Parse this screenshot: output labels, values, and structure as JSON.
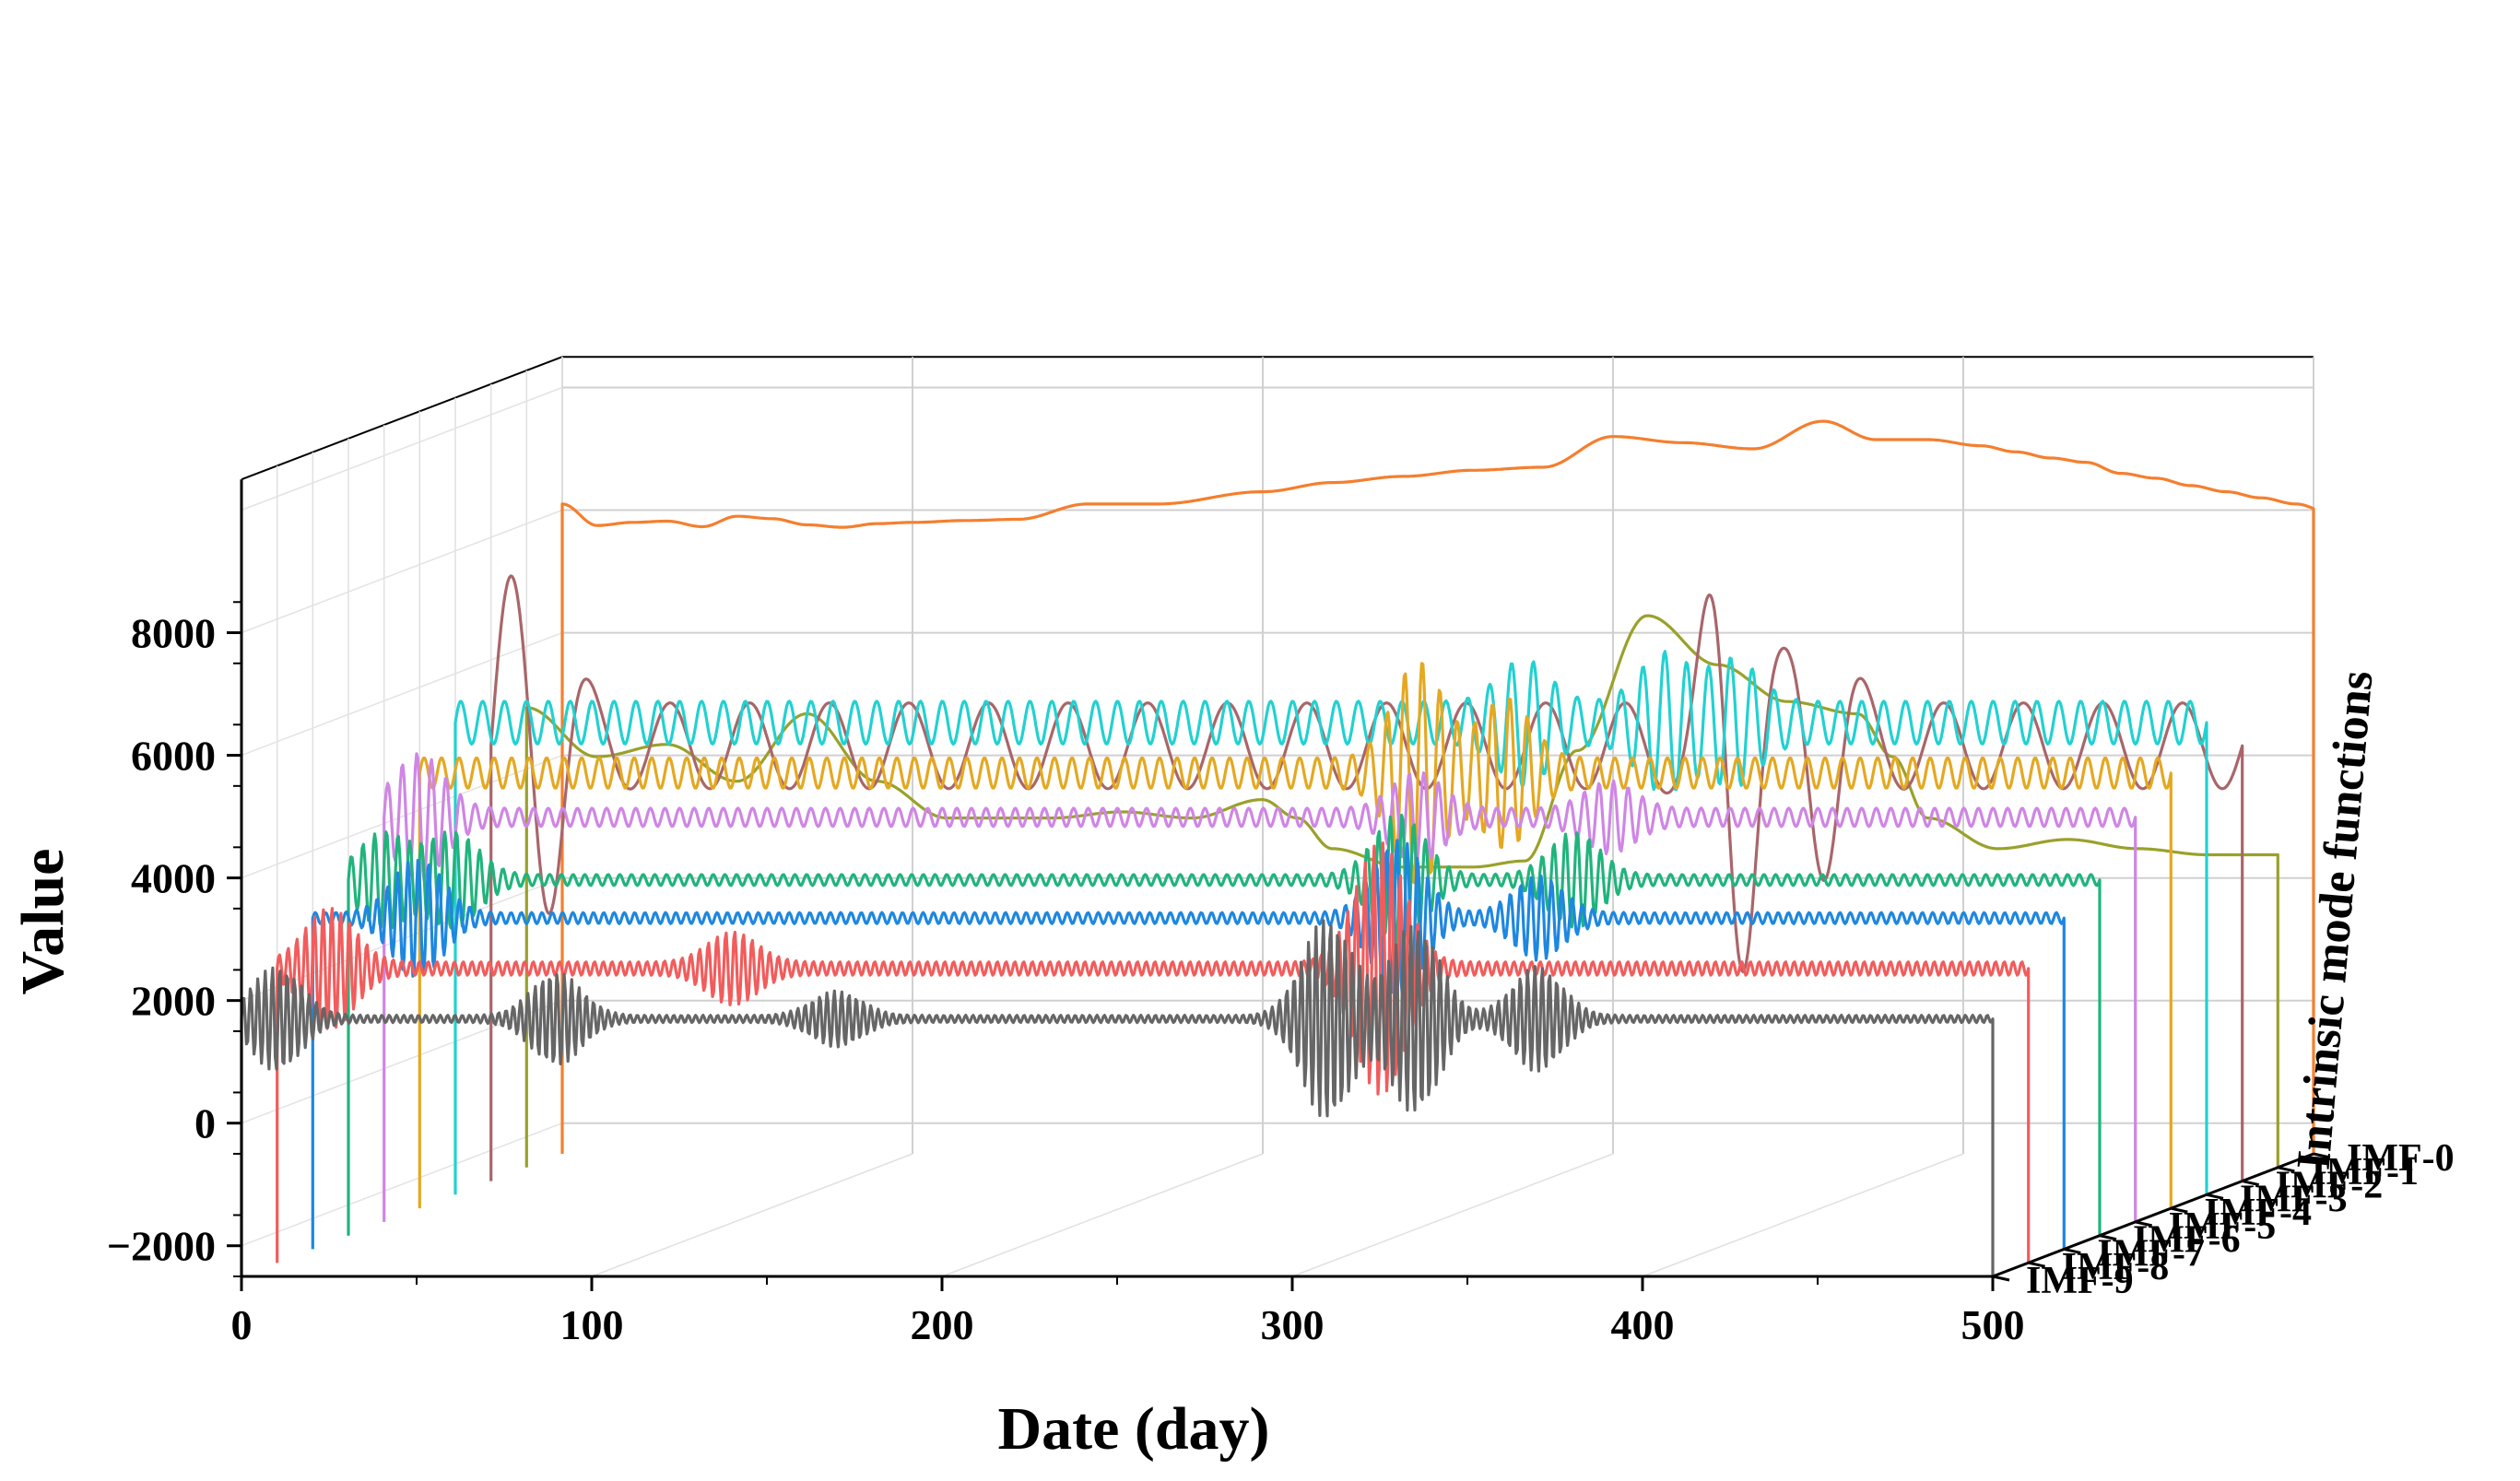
{
  "chart_data": {
    "type": "line",
    "subtype": "3d-waterfall",
    "title": "",
    "xlabel": "Date (day)",
    "ylabel": "Value",
    "zlabel": "Intrinsic mode functions",
    "xlim": [
      0,
      500
    ],
    "ylim": [
      -2500,
      9000
    ],
    "x_ticks": [
      "0",
      "100",
      "200",
      "300",
      "400",
      "500"
    ],
    "y_ticks": [
      "−2000",
      "0",
      "2000",
      "4000",
      "6000",
      "8000"
    ],
    "grid": true,
    "series": [
      {
        "name": "IMF-0",
        "color": "#f47f2e",
        "shape": "trend",
        "x": [
          0,
          10,
          20,
          30,
          40,
          50,
          60,
          70,
          80,
          90,
          100,
          115,
          130,
          150,
          170,
          200,
          220,
          240,
          260,
          280,
          300,
          320,
          340,
          360,
          375,
          390,
          405,
          415,
          425,
          435,
          445,
          455,
          465,
          475,
          485,
          495,
          505
        ],
        "y": [
          8100,
          7750,
          7800,
          7820,
          7730,
          7900,
          7860,
          7760,
          7720,
          7780,
          7800,
          7830,
          7850,
          8100,
          8100,
          8300,
          8450,
          8550,
          8650,
          8700,
          9200,
          9100,
          9000,
          9450,
          9150,
          9150,
          9050,
          8950,
          8850,
          8780,
          8600,
          8520,
          8400,
          8300,
          8200,
          8100,
          7950
        ]
      },
      {
        "name": "IMF-1",
        "color": "#9aa12b",
        "shape": "trend",
        "x": [
          0,
          20,
          40,
          60,
          80,
          100,
          120,
          150,
          170,
          190,
          210,
          220,
          230,
          250,
          270,
          285,
          300,
          320,
          340,
          360,
          380,
          390,
          400,
          420,
          440,
          460,
          480,
          490,
          500
        ],
        "y": [
          5000,
          4200,
          4400,
          3800,
          4900,
          3800,
          3200,
          3200,
          3300,
          3200,
          3500,
          3200,
          2700,
          2400,
          2400,
          2500,
          4300,
          6500,
          5700,
          5100,
          4900,
          4200,
          3200,
          2700,
          2850,
          2700,
          2600,
          2600,
          2600
        ]
      },
      {
        "name": "IMF-2",
        "color": "#a9666a",
        "shape": "oscillation",
        "amp": 700,
        "cycles": 22,
        "bursts": [
          [
            0,
            1700
          ],
          [
            15,
            2000
          ],
          [
            355,
            3200
          ],
          [
            380,
            1500
          ]
        ]
      },
      {
        "name": "IMF-3",
        "color": "#22d1d1",
        "shape": "oscillation",
        "amp": 350,
        "cycles": 80,
        "bursts": [
          [
            305,
            700
          ],
          [
            345,
            800
          ],
          [
            365,
            700
          ]
        ]
      },
      {
        "name": "IMF-4",
        "color": "#e4a821",
        "shape": "oscillation",
        "amp": 250,
        "cycles": 100,
        "bursts": [
          [
            285,
            1600
          ],
          [
            310,
            1000
          ]
        ]
      },
      {
        "name": "IMF-5",
        "color": "#cf86e4",
        "shape": "oscillation",
        "amp": 150,
        "cycles": 120,
        "bursts": [
          [
            10,
            900
          ],
          [
            295,
            600
          ],
          [
            350,
            450
          ]
        ]
      },
      {
        "name": "IMF-6",
        "color": "#20b47c",
        "shape": "oscillation",
        "amp": 90,
        "cycles": 150,
        "bursts": [
          [
            10,
            700
          ],
          [
            30,
            700
          ],
          [
            300,
            1000
          ],
          [
            350,
            700
          ]
        ]
      },
      {
        "name": "IMF-7",
        "color": "#1e87e0",
        "shape": "oscillation",
        "amp": 90,
        "cycles": 170,
        "bursts": [
          [
            30,
            900
          ],
          [
            310,
            1200
          ],
          [
            350,
            600
          ]
        ]
      },
      {
        "name": "IMF-8",
        "color": "#f25c5c",
        "shape": "oscillation",
        "amp": 110,
        "cycles": 200,
        "bursts": [
          [
            15,
            900
          ],
          [
            130,
            500
          ],
          [
            315,
            2000
          ]
        ]
      },
      {
        "name": "IMF-9",
        "color": "#666666",
        "shape": "oscillation",
        "amp": 60,
        "cycles": 240,
        "bursts": [
          [
            10,
            800
          ],
          [
            90,
            700
          ],
          [
            170,
            400
          ],
          [
            310,
            1600
          ],
          [
            335,
            1500
          ],
          [
            370,
            800
          ]
        ]
      }
    ]
  }
}
